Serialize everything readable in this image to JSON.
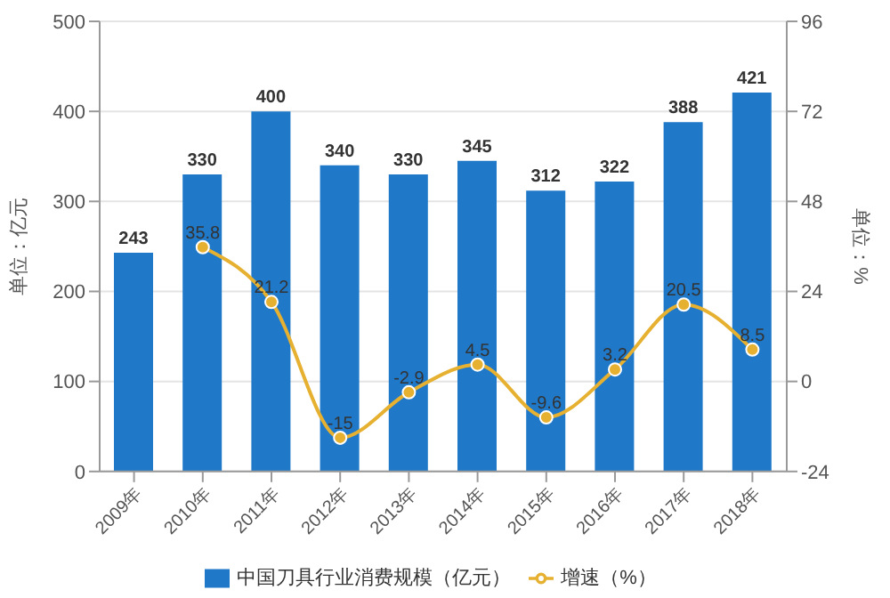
{
  "chart_data": {
    "type": "bar",
    "categories": [
      "2009年",
      "2010年",
      "2011年",
      "2012年",
      "2013年",
      "2014年",
      "2015年",
      "2016年",
      "2017年",
      "2018年"
    ],
    "series": [
      {
        "name": "中国刀具行业消费规模（亿元）",
        "color": "#1f78c8",
        "values": [
          243,
          330,
          400,
          340,
          330,
          345,
          312,
          322,
          388,
          421
        ]
      },
      {
        "name": "增速（%）",
        "type": "line",
        "axis": "y2",
        "color": "#e6b030",
        "values": [
          null,
          35.8,
          21.2,
          -15,
          -2.9,
          4.5,
          -9.6,
          3.2,
          20.5,
          8.5
        ]
      }
    ],
    "ylabel": "单位：亿元",
    "y2label": "单位：%",
    "ylim": [
      0,
      500
    ],
    "yticks": [
      0,
      100,
      200,
      300,
      400,
      500
    ],
    "y2lim": [
      -24,
      96
    ],
    "y2ticks": [
      -24,
      0,
      24,
      48,
      72,
      96
    ],
    "grid": "y",
    "legend": "bottom",
    "marker": "circle",
    "data_labels": true
  }
}
